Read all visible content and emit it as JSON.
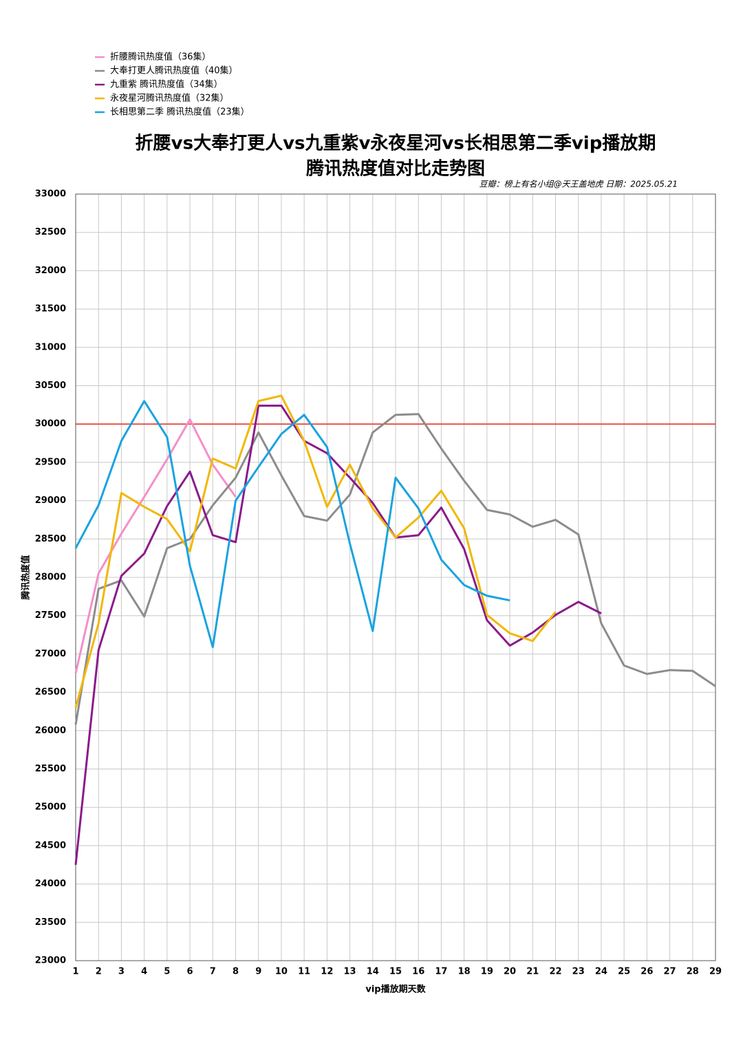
{
  "chart_data": {
    "type": "line",
    "title": [
      "折腰vs大奉打更人vs九重紫v永夜星河vs长相思第二季vip播放期",
      "腾讯热度值对比走势图"
    ],
    "annotation": "豆瓣：榜上有名小组@天王盖地虎 日期：2025.05.21",
    "x_label": "vip播放期天数",
    "y_label": "腾讯热度值",
    "x": [
      1,
      2,
      3,
      4,
      5,
      6,
      7,
      8,
      9,
      10,
      11,
      12,
      13,
      14,
      15,
      16,
      17,
      18,
      19,
      20,
      21,
      22,
      23,
      24,
      25,
      26,
      27,
      28,
      29
    ],
    "xlim": [
      1,
      29
    ],
    "ylim": [
      23000,
      33000
    ],
    "yticks": [
      23000,
      23500,
      24000,
      24500,
      25000,
      25500,
      26000,
      26500,
      27000,
      27500,
      28000,
      28500,
      29000,
      29500,
      30000,
      30500,
      31000,
      31500,
      32000,
      32500,
      33000
    ],
    "grid": true,
    "legend": "top-left",
    "reference_line": {
      "value": 30000,
      "color": "#e0281e"
    },
    "series": [
      {
        "name": "折腰腾讯热度值（36集）",
        "color": "#f48fc9",
        "values": [
          26750,
          28050,
          28570,
          29050,
          29540,
          30060,
          29470,
          29050,
          null,
          null,
          null,
          null,
          null,
          null,
          null,
          null,
          null,
          null,
          null,
          null,
          null,
          null,
          null,
          null,
          null,
          null,
          null,
          null,
          null
        ]
      },
      {
        "name": "大奉打更人腾讯热度值（40集）",
        "color": "#8c8c8c",
        "values": [
          26080,
          27850,
          27960,
          27490,
          28380,
          28500,
          28940,
          29300,
          29890,
          29330,
          28800,
          28740,
          29080,
          29890,
          30120,
          30130,
          29680,
          29260,
          28880,
          28820,
          28660,
          28750,
          28560,
          27400,
          26850,
          26740,
          26790,
          26780,
          26580
        ]
      },
      {
        "name": "九重紫 腾讯热度值（34集）",
        "color": "#8b1a8b",
        "values": [
          24250,
          27050,
          28020,
          28310,
          28930,
          29380,
          28550,
          28460,
          30240,
          30240,
          29780,
          29620,
          29300,
          28970,
          28520,
          28550,
          28910,
          28370,
          27440,
          27110,
          27280,
          27510,
          27680,
          27530,
          null,
          null,
          null,
          null,
          null
        ]
      },
      {
        "name": "永夜星河腾讯热度值（32集）",
        "color": "#f2b705",
        "values": [
          26300,
          27400,
          29100,
          28920,
          28760,
          28340,
          29550,
          29420,
          30300,
          30370,
          29780,
          28920,
          29470,
          28900,
          28520,
          28780,
          29130,
          28640,
          27510,
          27270,
          27170,
          27550,
          null,
          null,
          null,
          null,
          null,
          null,
          null
        ]
      },
      {
        "name": "长相思第二季 腾讯热度值（23集）",
        "color": "#1aa3e0",
        "values": [
          28380,
          28940,
          29780,
          30300,
          29830,
          28150,
          27090,
          29000,
          29440,
          29870,
          30120,
          29700,
          28440,
          27300,
          29300,
          28900,
          28230,
          27900,
          27760,
          27700,
          null,
          null,
          null,
          null,
          null,
          null,
          null,
          null,
          null
        ]
      }
    ]
  }
}
